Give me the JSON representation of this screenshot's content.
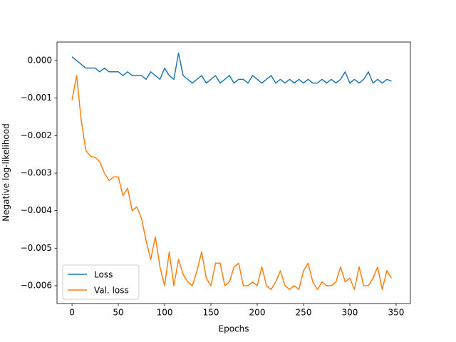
{
  "chart_data": {
    "type": "line",
    "xlabel": "Epochs",
    "ylabel": "Negative log-likelihood",
    "x": [
      0,
      5,
      10,
      15,
      20,
      25,
      30,
      35,
      40,
      45,
      50,
      55,
      60,
      65,
      70,
      75,
      80,
      85,
      90,
      95,
      100,
      105,
      110,
      115,
      120,
      125,
      130,
      135,
      140,
      145,
      150,
      155,
      160,
      165,
      170,
      175,
      180,
      185,
      190,
      195,
      200,
      205,
      210,
      215,
      220,
      225,
      230,
      235,
      240,
      245,
      250,
      255,
      260,
      265,
      270,
      275,
      280,
      285,
      290,
      295,
      300,
      305,
      310,
      315,
      320,
      325,
      330,
      335,
      340,
      345
    ],
    "series": [
      {
        "name": "Loss",
        "color": "#1f77b4",
        "values": [
          0.0001,
          0,
          -0.0001,
          -0.0002,
          -0.0002,
          -0.0002,
          -0.0003,
          -0.0002,
          -0.0003,
          -0.0003,
          -0.0003,
          -0.0004,
          -0.0003,
          -0.0004,
          -0.0004,
          -0.0004,
          -0.0005,
          -0.0003,
          -0.0004,
          -0.0005,
          -0.0002,
          -0.0004,
          -0.0005,
          0.0002,
          -0.0004,
          -0.0005,
          -0.0006,
          -0.0005,
          -0.0004,
          -0.0006,
          -0.0005,
          -0.0004,
          -0.0006,
          -0.0005,
          -0.0004,
          -0.0006,
          -0.0005,
          -0.0005,
          -0.0006,
          -0.0004,
          -0.0005,
          -0.0006,
          -0.0005,
          -0.0004,
          -0.0006,
          -0.0005,
          -0.0006,
          -0.0005,
          -0.0006,
          -0.0005,
          -0.0006,
          -0.0005,
          -0.0006,
          -0.0006,
          -0.0005,
          -0.0006,
          -0.0005,
          -0.0006,
          -0.0005,
          -0.0003,
          -0.0006,
          -0.0005,
          -0.0006,
          -0.0005,
          -0.0003,
          -0.0006,
          -0.0005,
          -0.0006,
          -0.0005,
          -0.00055
        ]
      },
      {
        "name": "Val. loss",
        "color": "#ff7f0e",
        "values": [
          -0.00105,
          -0.0004,
          -0.0016,
          -0.0024,
          -0.00255,
          -0.00258,
          -0.0027,
          -0.003,
          -0.0032,
          -0.0031,
          -0.0031,
          -0.0036,
          -0.0034,
          -0.004,
          -0.0039,
          -0.0042,
          -0.0048,
          -0.0053,
          -0.0047,
          -0.0055,
          -0.006,
          -0.0051,
          -0.006,
          -0.0053,
          -0.0057,
          -0.0059,
          -0.006,
          -0.0056,
          -0.0051,
          -0.0058,
          -0.006,
          -0.0054,
          -0.0054,
          -0.006,
          -0.0059,
          -0.0055,
          -0.0054,
          -0.006,
          -0.006,
          -0.0059,
          -0.006,
          -0.0055,
          -0.006,
          -0.0061,
          -0.0059,
          -0.0056,
          -0.006,
          -0.0061,
          -0.006,
          -0.0061,
          -0.0056,
          -0.0054,
          -0.0059,
          -0.0061,
          -0.0059,
          -0.006,
          -0.006,
          -0.0059,
          -0.0055,
          -0.0059,
          -0.0058,
          -0.0061,
          -0.0055,
          -0.006,
          -0.006,
          -0.0058,
          -0.0055,
          -0.0061,
          -0.0056,
          -0.0058
        ]
      }
    ],
    "xlim": [
      -16.2,
      365.4
    ],
    "xticks": [
      0,
      50,
      100,
      150,
      200,
      250,
      300,
      350
    ],
    "ylim": [
      -0.006475,
      0.000494
    ],
    "yticks": [
      {
        "value": 0,
        "label": "0.000"
      },
      {
        "value": -0.001,
        "label": "−0.001"
      },
      {
        "value": -0.002,
        "label": "−0.002"
      },
      {
        "value": -0.003,
        "label": "−0.003"
      },
      {
        "value": -0.004,
        "label": "−0.004"
      },
      {
        "value": -0.005,
        "label": "−0.005"
      },
      {
        "value": -0.006,
        "label": "−0.006"
      }
    ],
    "legend": "lower left",
    "grid": false
  }
}
